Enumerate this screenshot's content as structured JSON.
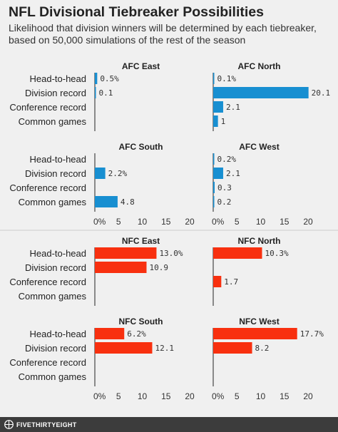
{
  "title": "NFL Divisional Tiebreaker Possibilities",
  "subtitle_lines": [
    "Likelihood that division winners will be determined by each tiebreaker,",
    "based on 50,000 simulations of the rest of the season"
  ],
  "footer": {
    "brand": "FIVETHIRTYEIGHT",
    "logo_icon": "fivethirtyeight-logo-icon"
  },
  "colors": {
    "afc": "#188fd1",
    "nfc": "#f8300f"
  },
  "chart_data": {
    "type": "bar",
    "orientation": "horizontal",
    "unit": "%",
    "categories": [
      "Head-to-head",
      "Division record",
      "Conference record",
      "Common games"
    ],
    "xlim": [
      0,
      20
    ],
    "x_ticks": [
      "0%",
      "5",
      "10",
      "15",
      "20"
    ],
    "grid": false,
    "panels": [
      {
        "name": "AFC East",
        "conference": "afc",
        "values": [
          0.5,
          0.1,
          null,
          null
        ],
        "labels": [
          "0.5%",
          "0.1",
          "",
          ""
        ]
      },
      {
        "name": "AFC North",
        "conference": "afc",
        "values": [
          0.1,
          20.1,
          2.1,
          1
        ],
        "labels": [
          "0.1%",
          "20.1",
          "2.1",
          "1"
        ]
      },
      {
        "name": "AFC South",
        "conference": "afc",
        "values": [
          null,
          2.2,
          null,
          4.8
        ],
        "labels": [
          "",
          "2.2%",
          "",
          "4.8"
        ]
      },
      {
        "name": "AFC West",
        "conference": "afc",
        "values": [
          0.2,
          2.1,
          0.3,
          0.2
        ],
        "labels": [
          "0.2%",
          "2.1",
          "0.3",
          "0.2"
        ]
      },
      {
        "name": "NFC East",
        "conference": "nfc",
        "values": [
          13.0,
          10.9,
          null,
          null
        ],
        "labels": [
          "13.0%",
          "10.9",
          "",
          ""
        ]
      },
      {
        "name": "NFC North",
        "conference": "nfc",
        "values": [
          10.3,
          null,
          1.7,
          null
        ],
        "labels": [
          "10.3%",
          "",
          "1.7",
          ""
        ]
      },
      {
        "name": "NFC South",
        "conference": "nfc",
        "values": [
          6.2,
          12.1,
          null,
          null
        ],
        "labels": [
          "6.2%",
          "12.1",
          "",
          ""
        ]
      },
      {
        "name": "NFC West",
        "conference": "nfc",
        "values": [
          17.7,
          8.2,
          null,
          null
        ],
        "labels": [
          "17.7%",
          "8.2",
          "",
          ""
        ]
      }
    ]
  }
}
